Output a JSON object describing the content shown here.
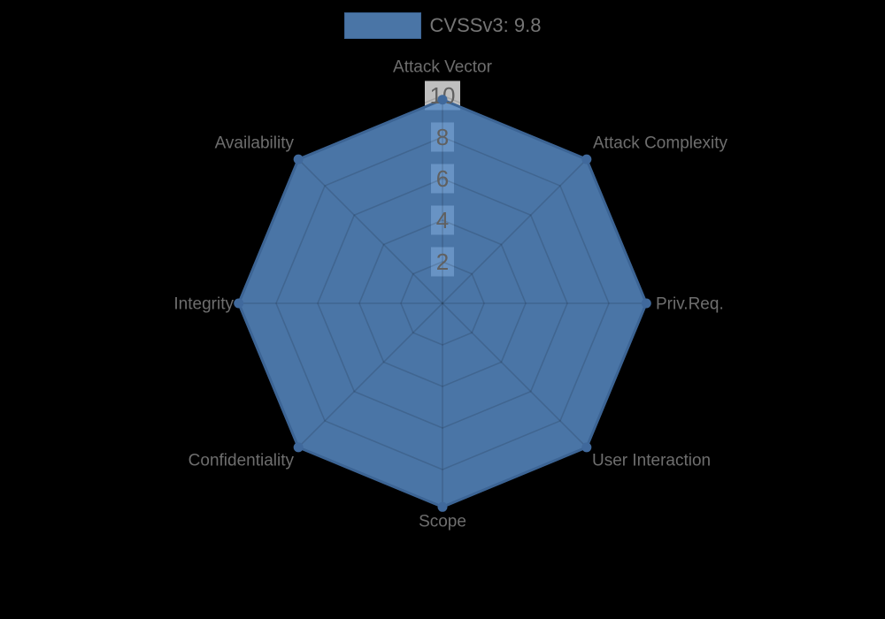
{
  "page": {
    "background": "#000000"
  },
  "legend": {
    "label": "CVSSv3: 9.8",
    "position": "top"
  },
  "chart_data": {
    "type": "radar",
    "title": "",
    "categories": [
      "Attack Vector",
      "Attack Complexity",
      "Priv.Req.",
      "User Interaction",
      "Scope",
      "Confidentiality",
      "Integrity",
      "Availability"
    ],
    "series": [
      {
        "name": "CVSSv3: 9.8",
        "values": [
          9.8,
          9.8,
          9.8,
          9.8,
          9.8,
          9.8,
          9.8,
          9.8
        ]
      }
    ],
    "scale": {
      "min": 0,
      "max": 10,
      "tick_step": 2,
      "tick_labels": [
        "2",
        "4",
        "6",
        "8",
        "10"
      ]
    },
    "grid": true,
    "legend_position": "top",
    "style": {
      "fill_color": "rgba(88,139,197,0.845)",
      "border_color": "#3c6494",
      "point_color": "#40699c",
      "grid_color": "rgba(0,0,0,0.13)",
      "tick_backdrop_color": "rgba(255,255,255,0.75)",
      "tick_text_color": "#606060",
      "label_text_color": "#6e6e6e"
    }
  }
}
